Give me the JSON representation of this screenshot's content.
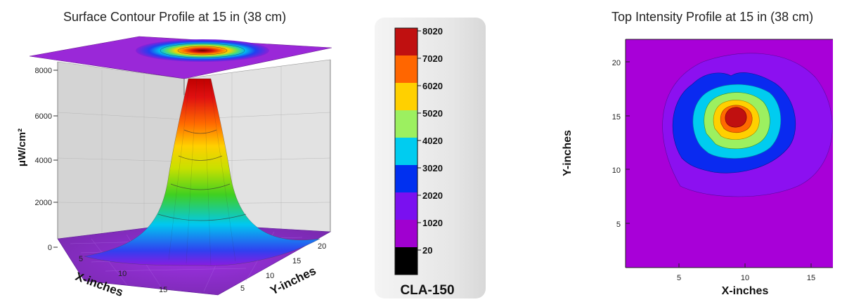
{
  "surface_chart": {
    "title": "Surface Contour Profile at 15 in (38 cm)",
    "zlabel": "μW/cm²",
    "xlabel": "X-inches",
    "ylabel": "Y-inches",
    "z_ticks": [
      "0",
      "2000",
      "4000",
      "6000",
      "8000"
    ],
    "x_ticks": [
      "5",
      "10",
      "15"
    ],
    "y_ticks": [
      "5",
      "10",
      "15",
      "20"
    ]
  },
  "legend": {
    "name": "CLA-150",
    "levels": [
      "8020",
      "7020",
      "6020",
      "5020",
      "4020",
      "3020",
      "2020",
      "1020",
      "20"
    ],
    "colors": [
      "#c01010",
      "#ff6600",
      "#ffd000",
      "#9cf060",
      "#00ccf0",
      "#0030f0",
      "#7a10f0",
      "#a000d0",
      "#000000"
    ]
  },
  "top_chart": {
    "title": "Top Intensity Profile at 15 in (38 cm)",
    "xlabel": "X-inches",
    "ylabel": "Y-inches",
    "x_ticks": [
      "5",
      "10",
      "15"
    ],
    "y_ticks": [
      "5",
      "10",
      "15",
      "20"
    ]
  },
  "chart_data": [
    {
      "type": "heatmap",
      "title": "Surface Contour Profile at 15 in (38 cm)",
      "xlabel": "X-inches",
      "ylabel": "Y-inches",
      "zlabel": "μW/cm²",
      "zlim": [
        0,
        8000
      ],
      "xlim": [
        1,
        19
      ],
      "ylim": [
        1,
        22
      ],
      "peak": {
        "x": 9,
        "y": 15,
        "value": 8000
      }
    },
    {
      "type": "heatmap",
      "title": "Top Intensity Profile at 15 in (38 cm)",
      "xlabel": "X-inches",
      "ylabel": "Y-inches",
      "xlim": [
        1,
        19
      ],
      "ylim": [
        1,
        22
      ],
      "contour_levels": [
        20,
        1020,
        2020,
        3020,
        4020,
        5020,
        6020,
        7020,
        8020
      ],
      "peak": {
        "x": 9,
        "y": 15
      }
    }
  ]
}
